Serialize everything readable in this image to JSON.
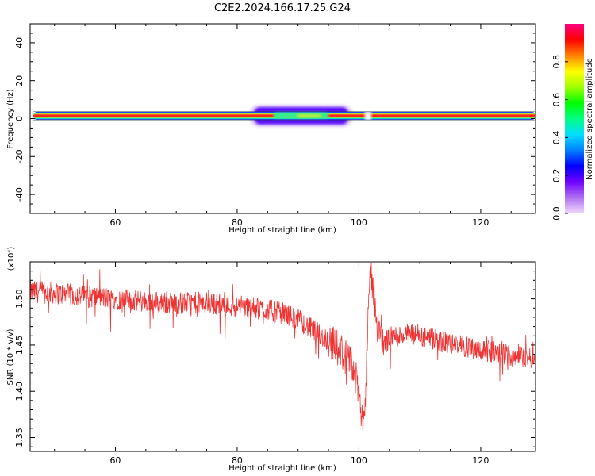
{
  "figure": {
    "title": "C2E2.2024.166.17.25.G24"
  },
  "chart_data": [
    {
      "type": "heatmap",
      "xlabel": "Height of straight line (km)",
      "ylabel": "Frequency (Hz)",
      "xlim": [
        46,
        129
      ],
      "ylim": [
        -50,
        50
      ],
      "x_ticks": [
        60,
        80,
        100,
        120
      ],
      "y_ticks": [
        -40,
        -20,
        0,
        20,
        40
      ],
      "colorbar": {
        "label": "Normalized spectral amplitude",
        "ticks": [
          "0.0",
          "0.2",
          "0.4",
          "0.6",
          "0.8"
        ],
        "range": [
          0,
          1
        ],
        "colormap": [
          "#f0d8ff",
          "#b070f0",
          "#7000ff",
          "#0000ff",
          "#0080ff",
          "#00e0ff",
          "#00ff80",
          "#00ff00",
          "#a0ff00",
          "#ffff00",
          "#ff8000",
          "#ff0000",
          "#ff0080"
        ]
      },
      "band_center_hz": 1.5,
      "band_halfwidth_hz": 2,
      "spread_region": {
        "x": [
          82,
          99
        ],
        "halfwidth_hz": 5
      },
      "gap_near_km": 101.5
    },
    {
      "type": "line",
      "xlabel": "Height of straight line (km)",
      "ylabel": "SNR (10 * v/v)",
      "scale_note": "(x10⁴)",
      "y_scale": 10000,
      "xlim": [
        46,
        129
      ],
      "ylim": [
        1.335,
        1.54
      ],
      "x_ticks": [
        60,
        80,
        100,
        120
      ],
      "y_ticks": [
        "1.35",
        "1.40",
        "1.45",
        "1.50"
      ],
      "line_color": "#ee3333",
      "series": [
        {
          "x": [
            46,
            50,
            55,
            60,
            65,
            70,
            75,
            80,
            85,
            88,
            90,
            92,
            95,
            97,
            99,
            100,
            100.5,
            101,
            101.5,
            102,
            102.5,
            103,
            104,
            105,
            108,
            112,
            116,
            120,
            124,
            126,
            129
          ],
          "y": [
            1.508,
            1.506,
            1.503,
            1.5,
            1.497,
            1.495,
            1.496,
            1.492,
            1.488,
            1.484,
            1.478,
            1.468,
            1.455,
            1.445,
            1.425,
            1.4,
            1.365,
            1.38,
            1.49,
            1.525,
            1.505,
            1.475,
            1.448,
            1.458,
            1.462,
            1.456,
            1.45,
            1.445,
            1.44,
            1.438,
            1.436
          ]
        }
      ]
    }
  ]
}
